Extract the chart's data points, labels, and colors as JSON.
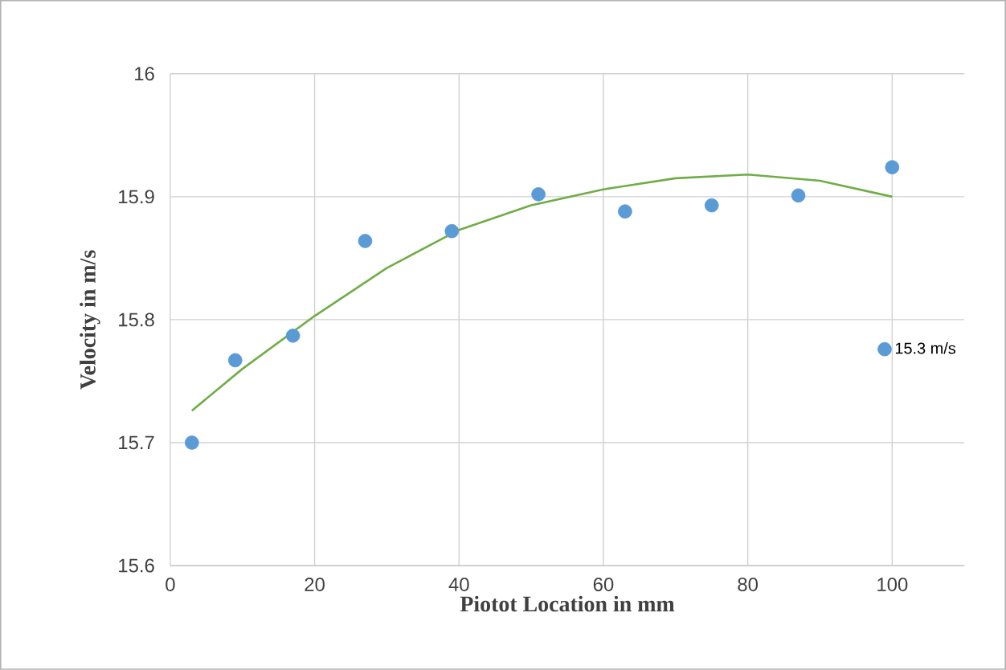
{
  "chart_data": {
    "type": "scatter",
    "xlabel": "Piotot Location in  mm",
    "ylabel": "Velocity in  m/s",
    "xlim": [
      0,
      110
    ],
    "xticks": [
      0,
      20,
      40,
      60,
      80,
      100
    ],
    "ylim": [
      15.6,
      16
    ],
    "yticks": [
      15.6,
      15.7,
      15.8,
      15.9,
      16
    ],
    "grid": true,
    "legend": "right",
    "series": [
      {
        "name": "15.3 m/s",
        "marker": "circle",
        "color": "#5b9bd5",
        "x": [
          3,
          9,
          17,
          27,
          39,
          51,
          63,
          75,
          87,
          100
        ],
        "values": [
          15.7,
          15.767,
          15.787,
          15.864,
          15.872,
          15.902,
          15.888,
          15.893,
          15.901,
          15.924
        ]
      },
      {
        "type": "line",
        "marker": "none",
        "color": "#70ad47",
        "x": [
          3,
          10,
          20,
          30,
          40,
          50,
          60,
          70,
          80,
          90,
          100
        ],
        "values": [
          15.726,
          15.76,
          15.803,
          15.842,
          15.873,
          15.893,
          15.906,
          15.915,
          15.918,
          15.913,
          15.9
        ]
      }
    ]
  }
}
